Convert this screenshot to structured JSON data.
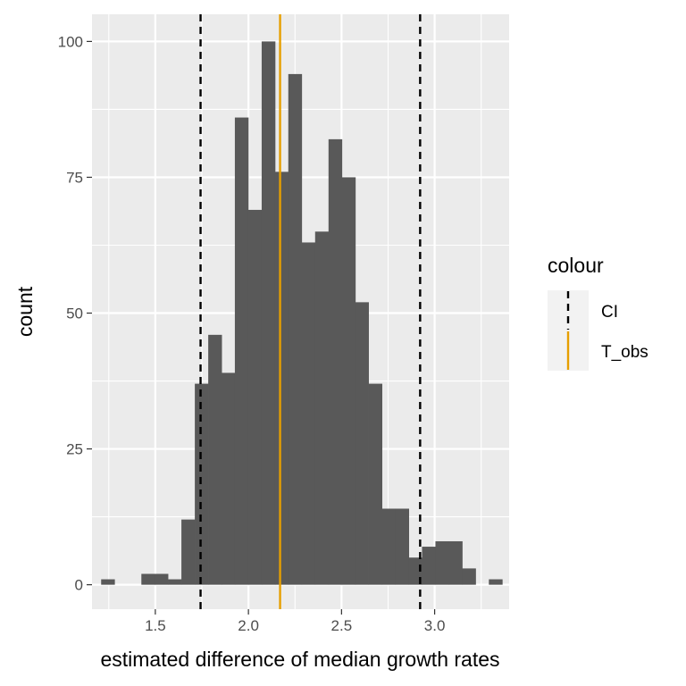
{
  "chart_data": {
    "type": "bar",
    "subtype": "histogram",
    "xlabel": "estimated difference of median growth rates",
    "ylabel": "count",
    "xlim": [
      1.16,
      3.4
    ],
    "ylim": [
      -4.5,
      105
    ],
    "x_ticks": [
      1.5,
      2.0,
      2.5,
      3.0
    ],
    "x_tick_labels": [
      "1.5",
      "2.0",
      "2.5",
      "3.0"
    ],
    "y_ticks": [
      0,
      25,
      50,
      75,
      100
    ],
    "y_tick_labels": [
      "0",
      "25",
      "50",
      "75",
      "100"
    ],
    "grid": true,
    "bin_width": 0.0718,
    "bins": [
      {
        "x": 1.245,
        "count": 1
      },
      {
        "x": 1.317,
        "count": 0
      },
      {
        "x": 1.389,
        "count": 0
      },
      {
        "x": 1.461,
        "count": 2
      },
      {
        "x": 1.532,
        "count": 2
      },
      {
        "x": 1.604,
        "count": 1
      },
      {
        "x": 1.676,
        "count": 12
      },
      {
        "x": 1.748,
        "count": 37
      },
      {
        "x": 1.82,
        "count": 46
      },
      {
        "x": 1.891,
        "count": 39
      },
      {
        "x": 1.963,
        "count": 86
      },
      {
        "x": 2.035,
        "count": 69
      },
      {
        "x": 2.107,
        "count": 100
      },
      {
        "x": 2.179,
        "count": 76
      },
      {
        "x": 2.25,
        "count": 94
      },
      {
        "x": 2.322,
        "count": 63
      },
      {
        "x": 2.394,
        "count": 65
      },
      {
        "x": 2.466,
        "count": 82
      },
      {
        "x": 2.538,
        "count": 75
      },
      {
        "x": 2.609,
        "count": 52
      },
      {
        "x": 2.681,
        "count": 37
      },
      {
        "x": 2.753,
        "count": 14
      },
      {
        "x": 2.825,
        "count": 14
      },
      {
        "x": 2.897,
        "count": 5
      },
      {
        "x": 2.968,
        "count": 7
      },
      {
        "x": 3.04,
        "count": 8
      },
      {
        "x": 3.112,
        "count": 8
      },
      {
        "x": 3.184,
        "count": 3
      },
      {
        "x": 3.256,
        "count": 0
      },
      {
        "x": 3.327,
        "count": 1
      }
    ],
    "vlines": [
      {
        "x": 1.743,
        "series": "CI",
        "linetype": "dashed"
      },
      {
        "x": 2.922,
        "series": "CI",
        "linetype": "dashed"
      },
      {
        "x": 2.17,
        "series": "T_obs",
        "linetype": "solid"
      }
    ],
    "legend": {
      "title": "colour",
      "position": "right",
      "entries": [
        {
          "label": "CI",
          "color": "#000000"
        },
        {
          "label": "T_obs",
          "color": "#E69F00"
        }
      ]
    },
    "colors": {
      "bar_fill": "#595959",
      "panel_bg": "#EBEBEB",
      "grid_major": "#FFFFFF",
      "ci": "#000000",
      "t_obs": "#E69F00"
    }
  }
}
